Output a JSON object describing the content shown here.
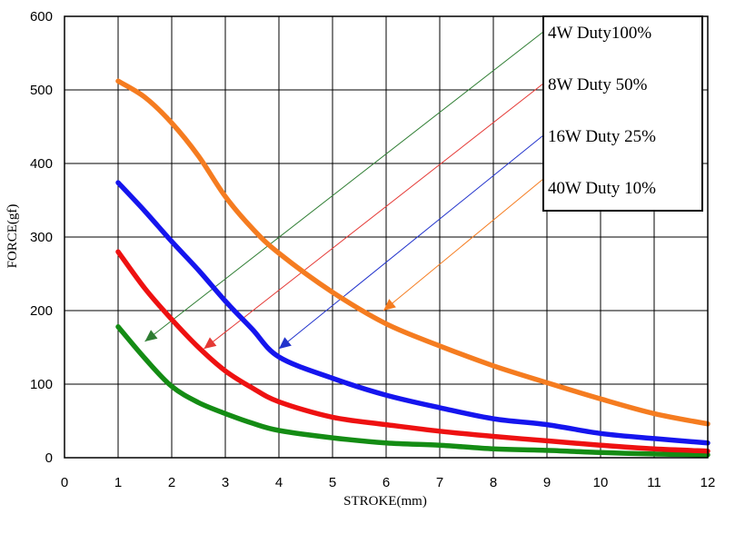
{
  "chart_data": {
    "type": "line",
    "xlabel": "STROKE(mm)",
    "ylabel": "FORCE(gf)",
    "xlim": [
      0,
      12
    ],
    "ylim": [
      0,
      600
    ],
    "x_ticks": [
      "0",
      "1",
      "2",
      "3",
      "4",
      "5",
      "6",
      "7",
      "8",
      "9",
      "10",
      "11",
      "12"
    ],
    "y_ticks": [
      "0",
      "100",
      "200",
      "300",
      "400",
      "500",
      "600"
    ],
    "grid": true,
    "legend_position": "top-right",
    "legend": [
      {
        "label": "4W   Duty100%",
        "color": "#2e7d32"
      },
      {
        "label": "8W   Duty  50%",
        "color": "#e53935"
      },
      {
        "label": "16W  Duty  25%",
        "color": "#2233cc"
      },
      {
        "label": "40W  Duty  10%",
        "color": "#f57c20"
      }
    ],
    "series": [
      {
        "color": "#148c14",
        "arrow_color": "#2e7d32",
        "arrow_target": [
          1.5,
          158
        ],
        "x": [
          1,
          1.5,
          2,
          2.5,
          3,
          3.5,
          4,
          5,
          6,
          7,
          8,
          9,
          10,
          11,
          12
        ],
        "y": [
          178,
          135,
          97,
          75,
          60,
          47,
          37,
          27,
          20,
          17,
          12,
          10,
          7,
          5,
          4
        ]
      },
      {
        "color": "#ee1111",
        "arrow_color": "#e53935",
        "arrow_target": [
          2.6,
          148
        ],
        "x": [
          1,
          1.5,
          2,
          2.5,
          3,
          3.5,
          4,
          5,
          6,
          7,
          8,
          9,
          10,
          11,
          12
        ],
        "y": [
          280,
          230,
          188,
          150,
          118,
          95,
          76,
          55,
          45,
          36,
          29,
          23,
          17,
          12,
          9
        ]
      },
      {
        "color": "#1515ee",
        "arrow_color": "#2233cc",
        "arrow_target": [
          4,
          148
        ],
        "x": [
          1,
          1.5,
          2,
          2.5,
          3,
          3.5,
          4,
          5,
          6,
          7,
          8,
          9,
          10,
          11,
          12
        ],
        "y": [
          374,
          335,
          294,
          255,
          213,
          175,
          137,
          108,
          85,
          68,
          53,
          45,
          33,
          26,
          20
        ]
      },
      {
        "color": "#f57c20",
        "arrow_color": "#f57c20",
        "arrow_target": [
          5.95,
          200
        ],
        "x": [
          1,
          1.5,
          2,
          2.5,
          3,
          3.5,
          4,
          5,
          6,
          7,
          8,
          9,
          10,
          11,
          12
        ],
        "y": [
          512,
          490,
          455,
          410,
          355,
          312,
          278,
          225,
          182,
          152,
          125,
          102,
          80,
          60,
          46
        ]
      }
    ]
  }
}
